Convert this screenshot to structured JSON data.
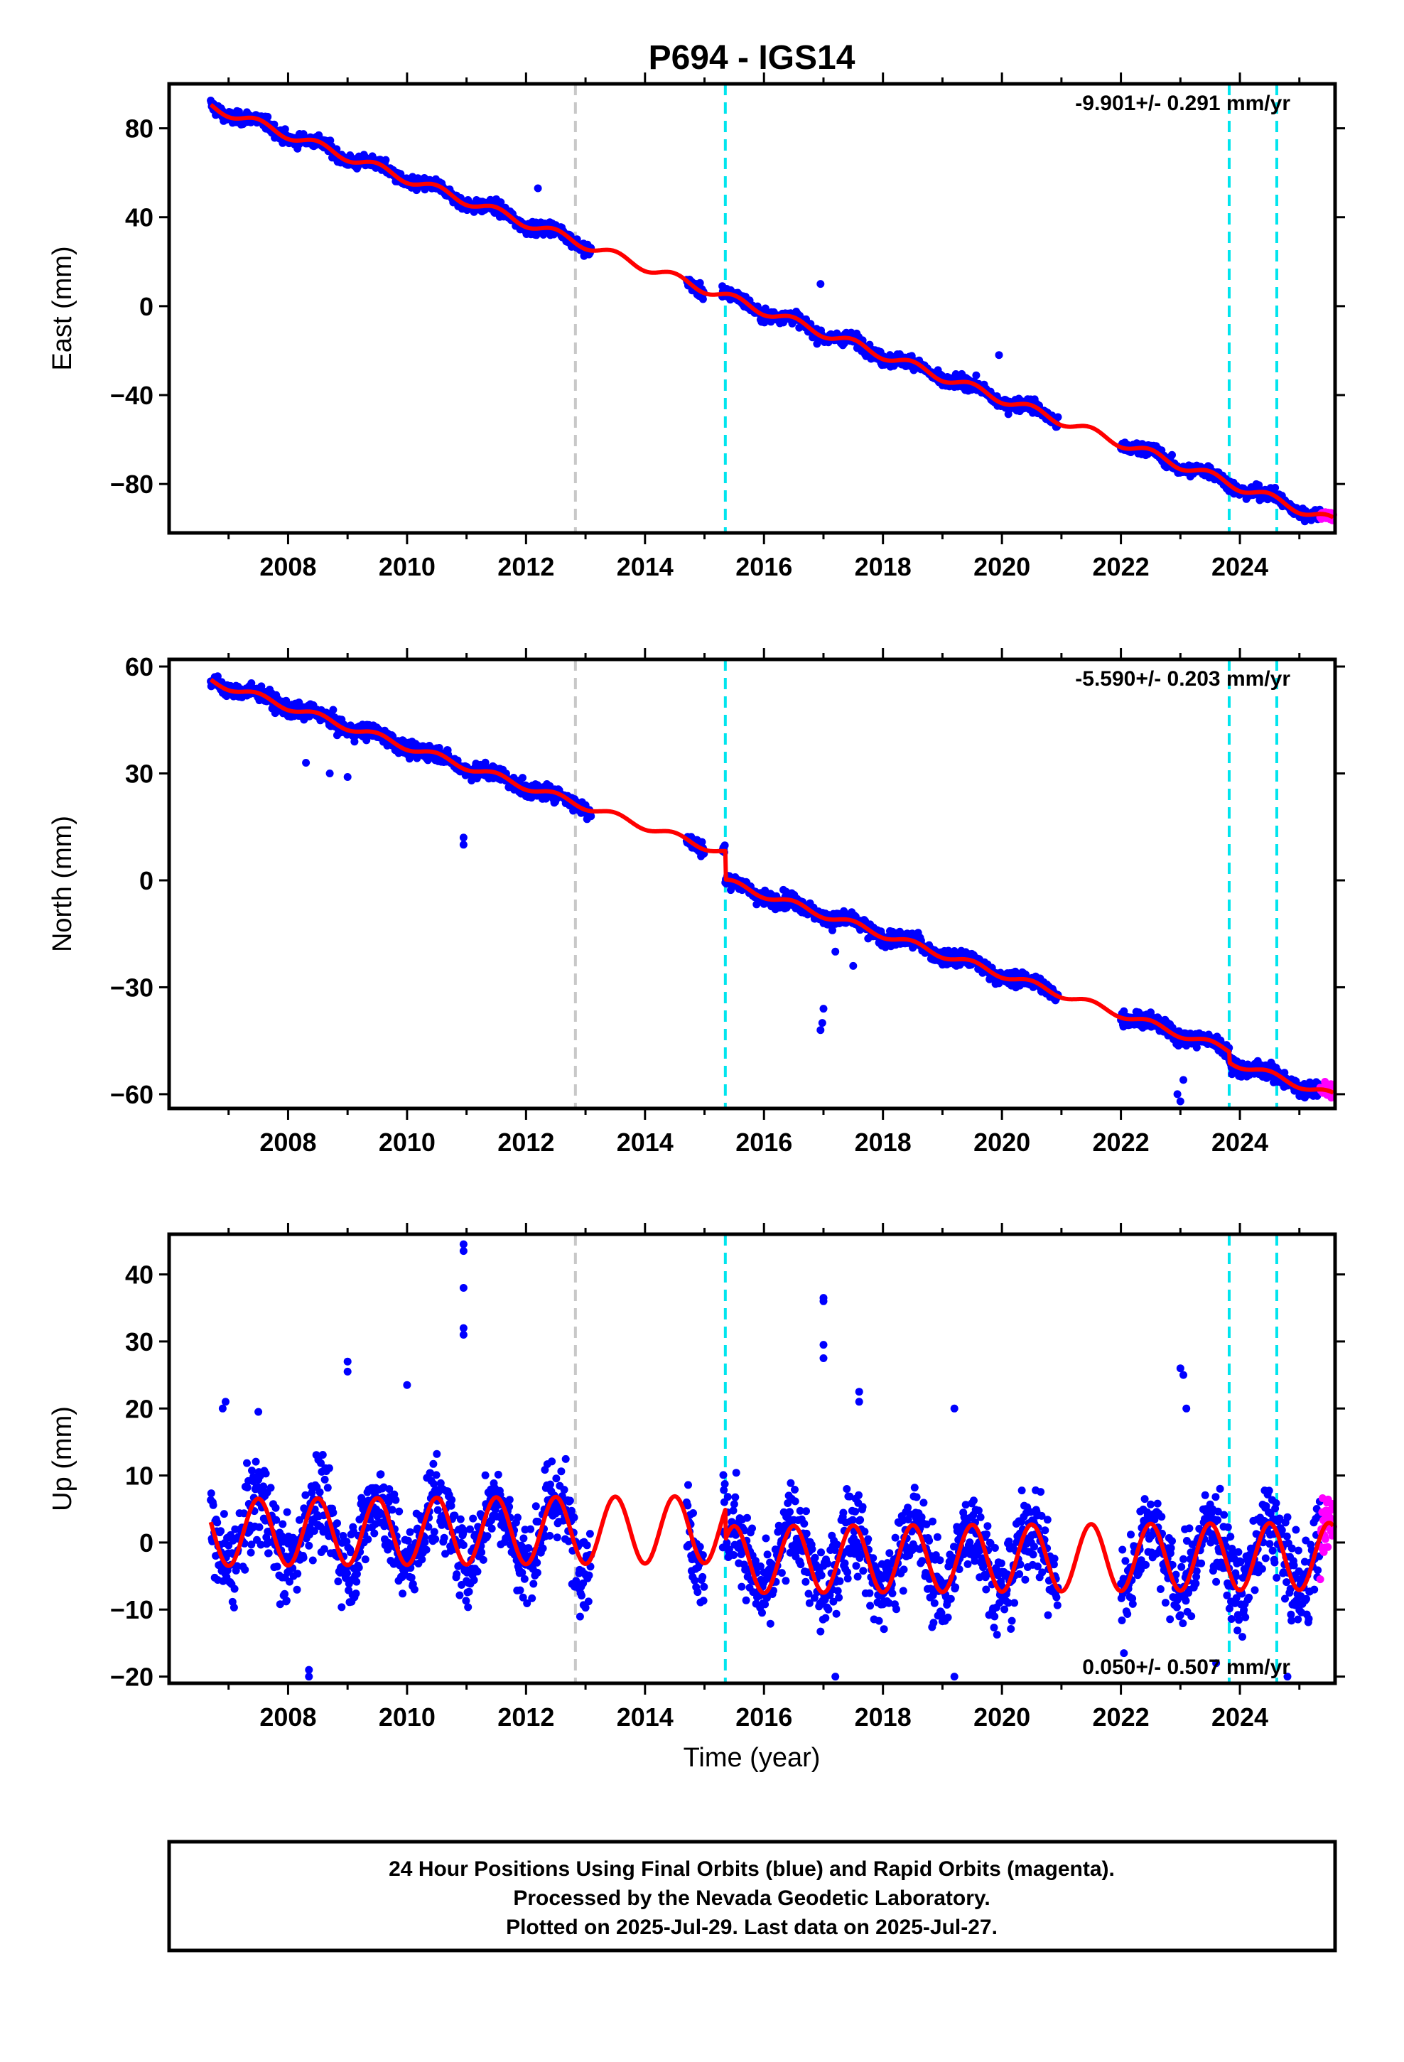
{
  "chart_data": {
    "type": "scatter",
    "title": "P694 - IGS14",
    "x_ticks": [
      2008,
      2010,
      2012,
      2014,
      2016,
      2018,
      2020,
      2022,
      2024
    ],
    "xlim": [
      2006.0,
      2025.6
    ],
    "xlabel": "Time (year)",
    "colors": {
      "final": "#0000ff",
      "rapid": "#ff00ff",
      "model": "#ff0000",
      "grey_line": "#c8c8c8",
      "cyan_line": "#00e5ee"
    },
    "vertical_lines": {
      "grey": [
        2012.83
      ],
      "cyan": [
        2015.35,
        2023.82,
        2024.62
      ]
    },
    "data_gaps": [
      [
        2013.1,
        2014.7
      ],
      [
        2015.0,
        2015.3
      ],
      [
        2020.95,
        2022.0
      ]
    ],
    "rapid_start": 2025.35,
    "last_data": 2025.57,
    "panels": [
      {
        "component": "East",
        "ylabel": "East (mm)",
        "ylim": [
          -102,
          100
        ],
        "y_ticks": [
          80,
          40,
          0,
          -40,
          -80
        ],
        "y_tick_labels": [
          "80",
          "40",
          "0",
          "−40",
          "−80"
        ],
        "rate_label": "-9.901+/- 0.291 mm/yr",
        "rate_position": "top-right",
        "trend": {
          "t0": 2006.7,
          "y0": 90.0,
          "slope": -9.901
        },
        "seasonal_amplitude": 2.0,
        "scatter_sd": 2.0,
        "offsets": [],
        "outliers": [
          [
            2012.2,
            53
          ],
          [
            2016.95,
            10
          ],
          [
            2019.95,
            -22
          ],
          [
            2015.3,
            9
          ]
        ]
      },
      {
        "component": "North",
        "ylabel": "North (mm)",
        "ylim": [
          -64,
          62
        ],
        "y_ticks": [
          60,
          30,
          0,
          -30,
          -60
        ],
        "y_tick_labels": [
          "60",
          "30",
          "0",
          "−30",
          "−60"
        ],
        "rate_label": "-5.590+/- 0.203 mm/yr",
        "rate_position": "top-right",
        "trend": {
          "t0": 2006.7,
          "y0": 56.0,
          "slope": -5.59
        },
        "seasonal_amplitude": 1.0,
        "scatter_sd": 1.5,
        "offsets": [
          [
            2015.35,
            -8.0
          ],
          [
            2023.82,
            -3.0
          ]
        ],
        "outliers": [
          [
            2010.95,
            10
          ],
          [
            2010.95,
            12
          ],
          [
            2016.95,
            -42
          ],
          [
            2016.98,
            -40
          ],
          [
            2017.0,
            -36
          ],
          [
            2017.2,
            -20
          ],
          [
            2017.5,
            -24
          ],
          [
            2022.95,
            -60
          ],
          [
            2023.0,
            -62
          ],
          [
            2023.05,
            -56
          ],
          [
            2008.7,
            30
          ],
          [
            2009.0,
            29
          ],
          [
            2008.3,
            33
          ]
        ]
      },
      {
        "component": "Up",
        "ylabel": "Up (mm)",
        "ylim": [
          -21,
          46
        ],
        "y_ticks": [
          40,
          30,
          20,
          10,
          0,
          -10,
          -20
        ],
        "y_tick_labels": [
          "40",
          "30",
          "20",
          "10",
          "0",
          "−10",
          "−20"
        ],
        "rate_label": "0.050+/- 0.507 mm/yr",
        "rate_position": "bottom-right",
        "trend": {
          "t0": 2006.7,
          "y0": 1.5,
          "slope": 0.05
        },
        "seasonal_amplitude": 5.0,
        "scatter_sd": 4.5,
        "offsets": [
          [
            2015.35,
            -4.5
          ]
        ],
        "outliers": [
          [
            2010.95,
            44.5
          ],
          [
            2010.95,
            43.5
          ],
          [
            2010.95,
            38
          ],
          [
            2010.95,
            32
          ],
          [
            2010.95,
            31
          ],
          [
            2017.0,
            36.5
          ],
          [
            2017.0,
            36
          ],
          [
            2017.0,
            29.5
          ],
          [
            2017.0,
            27.5
          ],
          [
            2009.0,
            27
          ],
          [
            2009.0,
            25.5
          ],
          [
            2010.0,
            23.5
          ],
          [
            2023.0,
            26
          ],
          [
            2023.05,
            25
          ],
          [
            2023.1,
            20
          ],
          [
            2017.6,
            22.5
          ],
          [
            2017.6,
            21
          ],
          [
            2006.95,
            21
          ],
          [
            2006.9,
            20
          ],
          [
            2019.2,
            20
          ],
          [
            2007.5,
            19.5
          ],
          [
            2008.35,
            -19
          ],
          [
            2008.35,
            -20
          ],
          [
            2017.2,
            -20
          ],
          [
            2019.2,
            -20
          ],
          [
            2024.8,
            -20
          ],
          [
            2022.05,
            -16.5
          ],
          [
            2023.6,
            -18
          ]
        ]
      }
    ]
  },
  "footer": {
    "line1": "24 Hour Positions Using Final Orbits (blue) and Rapid Orbits (magenta).",
    "line2": "Processed by the Nevada Geodetic Laboratory.",
    "line3": "Plotted on 2025-Jul-29. Last data on 2025-Jul-27."
  }
}
